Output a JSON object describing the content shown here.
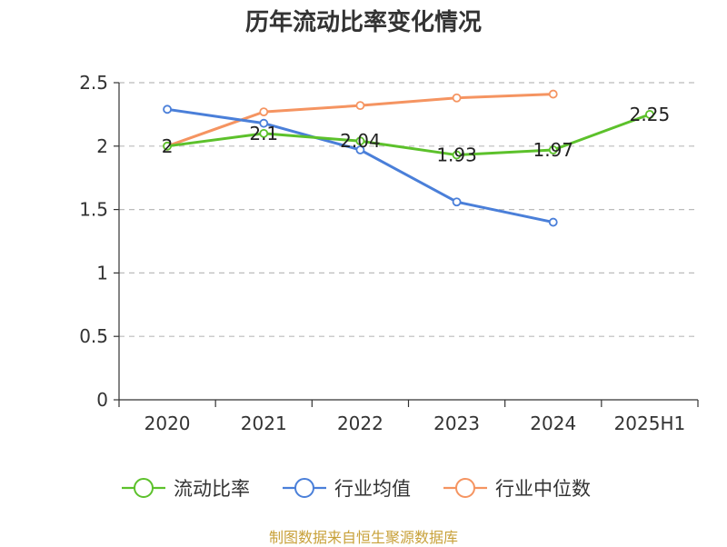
{
  "title": "历年流动比率变化情况",
  "source_note": "制图数据来自恒生聚源数据库",
  "chart_data": {
    "type": "line",
    "title": "历年流动比率变化情况",
    "xlabel": "",
    "ylabel": "",
    "categories": [
      "2020",
      "2021",
      "2022",
      "2023",
      "2024",
      "2025H1"
    ],
    "ylim": [
      0,
      2.5
    ],
    "yticks": [
      0,
      0.5,
      1,
      1.5,
      2,
      2.5
    ],
    "ytick_labels": [
      "0",
      "0.5",
      "1",
      "1.5",
      "2",
      "2.5"
    ],
    "grid": true,
    "legend_position": "bottom",
    "series": [
      {
        "name": "流动比率",
        "color": "#5cc12b",
        "values": [
          2,
          2.1,
          2.04,
          1.93,
          1.97,
          2.25
        ],
        "labels": [
          "2",
          "2.1",
          "2.04",
          "1.93",
          "1.97",
          "2.25"
        ]
      },
      {
        "name": "行业均值",
        "color": "#4a7fd9",
        "values": [
          2.29,
          2.18,
          1.97,
          1.56,
          1.4,
          null
        ]
      },
      {
        "name": "行业中位数",
        "color": "#f59461",
        "values": [
          2.0,
          2.27,
          2.32,
          2.38,
          2.41,
          null
        ]
      }
    ]
  }
}
